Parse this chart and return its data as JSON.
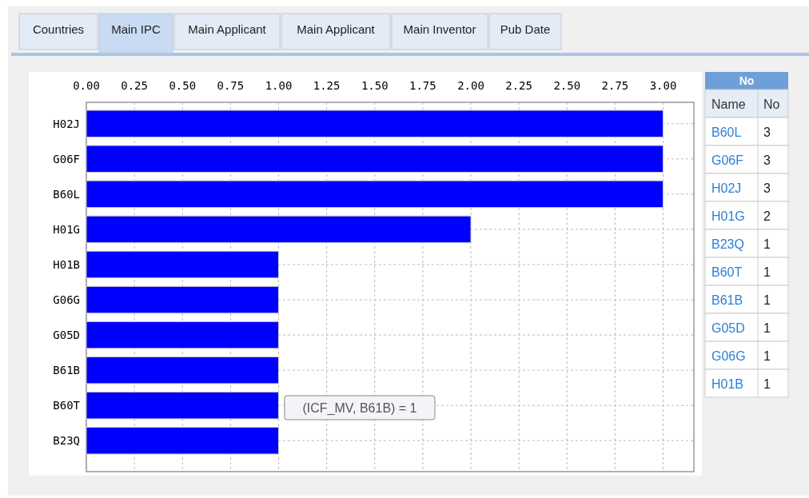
{
  "chart_data": [
    {
      "type": "bar",
      "orientation": "horizontal",
      "categories": [
        "H02J",
        "G06F",
        "B60L",
        "H01G",
        "H01B",
        "G06G",
        "G05D",
        "B61B",
        "B60T",
        "B23Q"
      ],
      "values": [
        3,
        3,
        3,
        2,
        1,
        1,
        1,
        1,
        1,
        1
      ],
      "color": "#0000ff",
      "xlim": [
        0,
        3.16
      ],
      "xticks": [
        {
          "value": 0,
          "label": "0.00"
        },
        {
          "value": 0.25,
          "label": "0.25"
        },
        {
          "value": 0.5,
          "label": "0.50"
        },
        {
          "value": 0.75,
          "label": "0.75"
        },
        {
          "value": 1,
          "label": "1.00"
        },
        {
          "value": 1.25,
          "label": "1.25"
        },
        {
          "value": 1.5,
          "label": "1.50"
        },
        {
          "value": 1.75,
          "label": "1.75"
        },
        {
          "value": 2,
          "label": "2.00"
        },
        {
          "value": 2.25,
          "label": "2.25"
        },
        {
          "value": 2.5,
          "label": "2.50"
        },
        {
          "value": 2.75,
          "label": "2.75"
        },
        {
          "value": 3,
          "label": "3.00"
        }
      ],
      "grid": true,
      "annotations": [
        "Countries",
        "Main IPC",
        "Main Applicant",
        "Main Applicant",
        "Main Inventor",
        "Pub Date",
        "(ICF_MV, B61B) = 1"
      ]
    },
    {
      "type": "other",
      "title": "No",
      "data_labels": true,
      "annotations": [
        "Name",
        "No"
      ],
      "categories": [
        "B60L",
        "G06F",
        "H02J",
        "H01G",
        "B23Q",
        "B60T",
        "B61B",
        "G05D",
        "G06G",
        "H01B"
      ],
      "values": [
        3,
        3,
        3,
        2,
        1,
        1,
        1,
        1,
        1,
        1
      ]
    }
  ]
}
